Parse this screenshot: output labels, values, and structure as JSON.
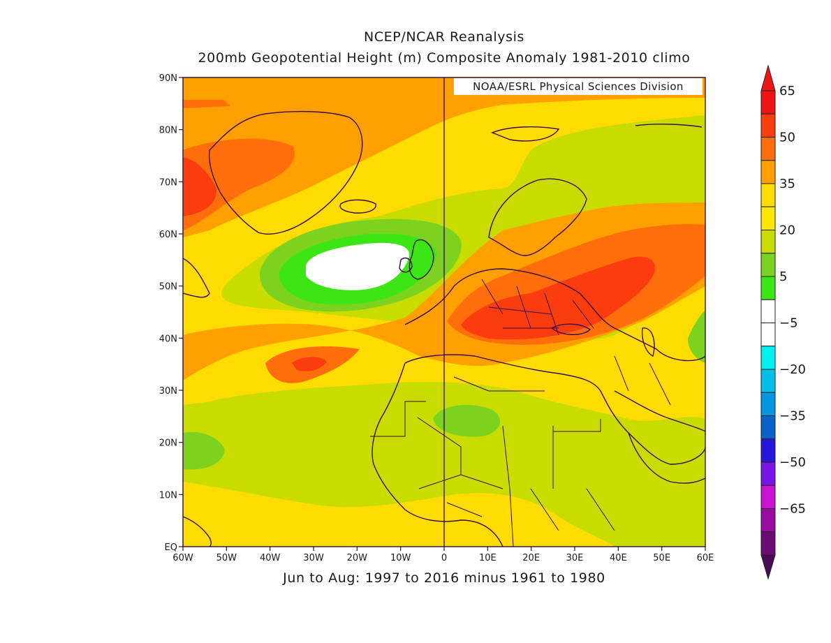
{
  "title_line1": "NCEP/NCAR Reanalysis",
  "title_line2": "200mb Geopotential Height (m) Composite Anomaly 1981-2010 climo",
  "credit": "NOAA/ESRL Physical Sciences Division",
  "subtitle": "Jun to Aug: 1997 to 2016 minus 1961 to 1980",
  "map": {
    "lon_range": [
      -60,
      60
    ],
    "lat_range": [
      0,
      90
    ],
    "lon_ticks": [
      {
        "value": -60,
        "label": "60W"
      },
      {
        "value": -50,
        "label": "50W"
      },
      {
        "value": -40,
        "label": "40W"
      },
      {
        "value": -30,
        "label": "30W"
      },
      {
        "value": -20,
        "label": "20W"
      },
      {
        "value": -10,
        "label": "10W"
      },
      {
        "value": 0,
        "label": "0"
      },
      {
        "value": 10,
        "label": "10E"
      },
      {
        "value": 20,
        "label": "20E"
      },
      {
        "value": 30,
        "label": "30E"
      },
      {
        "value": 40,
        "label": "40E"
      },
      {
        "value": 50,
        "label": "50E"
      },
      {
        "value": 60,
        "label": "60E"
      }
    ],
    "lat_ticks": [
      {
        "value": 0,
        "label": "EQ"
      },
      {
        "value": 10,
        "label": "10N"
      },
      {
        "value": 20,
        "label": "20N"
      },
      {
        "value": 30,
        "label": "30N"
      },
      {
        "value": 40,
        "label": "40N"
      },
      {
        "value": 50,
        "label": "50N"
      },
      {
        "value": 60,
        "label": "60N"
      },
      {
        "value": 70,
        "label": "70N"
      },
      {
        "value": 80,
        "label": "80N"
      },
      {
        "value": 90,
        "label": "90N"
      }
    ]
  },
  "colorbar": {
    "levels": [
      {
        "color": "#f01414",
        "label": "65"
      },
      {
        "color": "#fa3c0f",
        "label": ""
      },
      {
        "color": "#ff6e0a",
        "label": "50"
      },
      {
        "color": "#ffa000",
        "label": ""
      },
      {
        "color": "#ffdc00",
        "label": "35"
      },
      {
        "color": "#ffe800",
        "label": ""
      },
      {
        "color": "#c8dc00",
        "label": "20"
      },
      {
        "color": "#7cd21e",
        "label": ""
      },
      {
        "color": "#3ce614",
        "label": "5"
      },
      {
        "color": "#ffffff",
        "label": ""
      },
      {
        "color": "#ffffff",
        "label": "-5"
      },
      {
        "color": "#00f0f0",
        "label": ""
      },
      {
        "color": "#00c0e8",
        "label": "-20"
      },
      {
        "color": "#0096e0",
        "label": ""
      },
      {
        "color": "#0a64c8",
        "label": "-35"
      },
      {
        "color": "#2814dc",
        "label": ""
      },
      {
        "color": "#7814e6",
        "label": "-50"
      },
      {
        "color": "#c814d2",
        "label": ""
      },
      {
        "color": "#9b0aa0",
        "label": "-65"
      },
      {
        "color": "#6e0a78",
        "label": ""
      }
    ],
    "top_color": "#f01414",
    "bottom_color": "#4a0a55",
    "label_values": [
      "65",
      "50",
      "35",
      "20",
      "5",
      "-5",
      "-20",
      "-35",
      "-50",
      "-65"
    ]
  }
}
